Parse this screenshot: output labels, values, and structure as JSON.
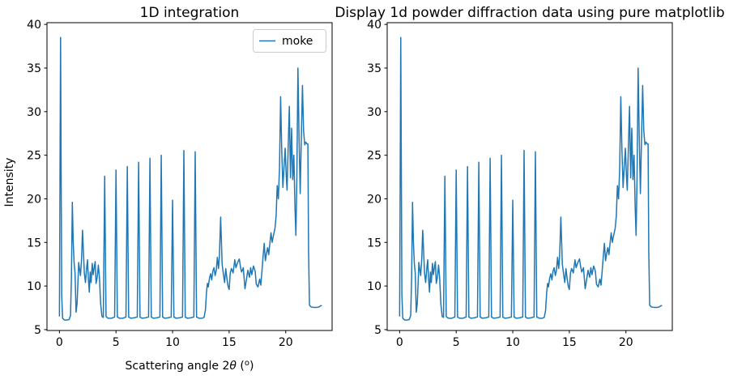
{
  "figure": {
    "background": "#ffffff"
  },
  "xlabel_parts": {
    "pre": "Scattering angle 2",
    "theta": "θ",
    "open": " (",
    "sup": "o",
    "close": ")"
  },
  "chart_data": {
    "type": "line",
    "grid": false,
    "shared_series": {
      "name": "moke",
      "color": "#1f77b4",
      "line_width": 1.5,
      "points": [
        [
          0,
          6.5
        ],
        [
          0.1,
          38.5
        ],
        [
          0.2,
          9
        ],
        [
          0.28,
          6.3
        ],
        [
          0.45,
          6.1
        ],
        [
          0.65,
          6.1
        ],
        [
          0.85,
          6.15
        ],
        [
          0.98,
          6.6
        ],
        [
          1.06,
          11
        ],
        [
          1.14,
          19.6
        ],
        [
          1.22,
          15
        ],
        [
          1.3,
          12.6
        ],
        [
          1.38,
          11.5
        ],
        [
          1.47,
          7
        ],
        [
          1.56,
          8
        ],
        [
          1.64,
          10.5
        ],
        [
          1.7,
          12.7
        ],
        [
          1.78,
          11.9
        ],
        [
          1.86,
          11.2
        ],
        [
          1.96,
          13.2
        ],
        [
          2.04,
          16.4
        ],
        [
          2.12,
          14
        ],
        [
          2.2,
          11.5
        ],
        [
          2.3,
          10.4
        ],
        [
          2.4,
          12
        ],
        [
          2.48,
          13
        ],
        [
          2.56,
          10.8
        ],
        [
          2.64,
          9.3
        ],
        [
          2.72,
          11.6
        ],
        [
          2.8,
          10.4
        ],
        [
          2.9,
          12.6
        ],
        [
          2.98,
          11.3
        ],
        [
          3.08,
          12.2
        ],
        [
          3.16,
          12.8
        ],
        [
          3.24,
          10.3
        ],
        [
          3.34,
          11
        ],
        [
          3.44,
          12.4
        ],
        [
          3.54,
          10.9
        ],
        [
          3.64,
          8
        ],
        [
          3.76,
          6.5
        ],
        [
          3.88,
          6.4
        ],
        [
          4,
          22.6
        ],
        [
          4.12,
          6.5
        ],
        [
          4.3,
          6.3
        ],
        [
          4.6,
          6.3
        ],
        [
          4.88,
          6.45
        ],
        [
          5,
          23.3
        ],
        [
          5.12,
          6.45
        ],
        [
          5.3,
          6.3
        ],
        [
          5.6,
          6.3
        ],
        [
          5.88,
          6.45
        ],
        [
          6,
          23.7
        ],
        [
          6.12,
          6.45
        ],
        [
          6.3,
          6.3
        ],
        [
          6.6,
          6.35
        ],
        [
          6.88,
          6.45
        ],
        [
          7,
          24.2
        ],
        [
          7.12,
          6.45
        ],
        [
          7.3,
          6.3
        ],
        [
          7.6,
          6.35
        ],
        [
          7.88,
          6.45
        ],
        [
          8,
          24.65
        ],
        [
          8.12,
          6.45
        ],
        [
          8.3,
          6.3
        ],
        [
          8.6,
          6.35
        ],
        [
          8.88,
          6.45
        ],
        [
          9,
          25
        ],
        [
          9.12,
          6.45
        ],
        [
          9.3,
          6.3
        ],
        [
          9.6,
          6.35
        ],
        [
          9.88,
          6.45
        ],
        [
          10,
          19.85
        ],
        [
          10.12,
          6.45
        ],
        [
          10.3,
          6.3
        ],
        [
          10.6,
          6.35
        ],
        [
          10.88,
          6.45
        ],
        [
          11,
          25.55
        ],
        [
          11.12,
          6.45
        ],
        [
          11.3,
          6.3
        ],
        [
          11.6,
          6.35
        ],
        [
          11.88,
          6.45
        ],
        [
          12,
          25.4
        ],
        [
          12.12,
          6.45
        ],
        [
          12.35,
          6.3
        ],
        [
          12.6,
          6.3
        ],
        [
          12.78,
          6.4
        ],
        [
          12.9,
          7.2
        ],
        [
          13,
          9.3
        ],
        [
          13.08,
          10.3
        ],
        [
          13.16,
          9.9
        ],
        [
          13.26,
          10.9
        ],
        [
          13.36,
          11.4
        ],
        [
          13.46,
          10.7
        ],
        [
          13.56,
          11.7
        ],
        [
          13.66,
          12.1
        ],
        [
          13.76,
          11.2
        ],
        [
          13.86,
          11.8
        ],
        [
          13.96,
          13.3
        ],
        [
          14.06,
          12
        ],
        [
          14.14,
          13.4
        ],
        [
          14.25,
          17.9
        ],
        [
          14.38,
          12.5
        ],
        [
          14.5,
          11.3
        ],
        [
          14.6,
          10.4
        ],
        [
          14.7,
          12
        ],
        [
          14.8,
          10.9
        ],
        [
          14.9,
          10
        ],
        [
          15,
          9.6
        ],
        [
          15.1,
          11.5
        ],
        [
          15.2,
          12
        ],
        [
          15.35,
          11.5
        ],
        [
          15.5,
          13
        ],
        [
          15.6,
          12.1
        ],
        [
          15.75,
          12.7
        ],
        [
          15.9,
          13.1
        ],
        [
          16,
          12.2
        ],
        [
          16.1,
          11.6
        ],
        [
          16.25,
          12.1
        ],
        [
          16.4,
          9.7
        ],
        [
          16.5,
          10.5
        ],
        [
          16.65,
          11.8
        ],
        [
          16.8,
          11
        ],
        [
          16.9,
          12.1
        ],
        [
          17,
          11.3
        ],
        [
          17.15,
          12.3
        ],
        [
          17.3,
          11.7
        ],
        [
          17.4,
          10.2
        ],
        [
          17.55,
          9.9
        ],
        [
          17.7,
          10.8
        ],
        [
          17.8,
          10.1
        ],
        [
          17.9,
          11.7
        ],
        [
          18,
          13.4
        ],
        [
          18.1,
          14.9
        ],
        [
          18.2,
          12.9
        ],
        [
          18.3,
          13.7
        ],
        [
          18.4,
          14.4
        ],
        [
          18.5,
          13.6
        ],
        [
          18.6,
          14.9
        ],
        [
          18.7,
          16.1
        ],
        [
          18.8,
          15
        ],
        [
          18.9,
          15.7
        ],
        [
          19.05,
          16.6
        ],
        [
          19.15,
          18
        ],
        [
          19.25,
          21.5
        ],
        [
          19.35,
          20
        ],
        [
          19.45,
          23.5
        ],
        [
          19.55,
          31.7
        ],
        [
          19.65,
          25.5
        ],
        [
          19.75,
          21.3
        ],
        [
          19.85,
          23.6
        ],
        [
          19.95,
          25.8
        ],
        [
          20.05,
          22.6
        ],
        [
          20.12,
          21
        ],
        [
          20.22,
          26
        ],
        [
          20.32,
          30.6
        ],
        [
          20.42,
          22.4
        ],
        [
          20.52,
          28.1
        ],
        [
          20.62,
          22.2
        ],
        [
          20.72,
          25
        ],
        [
          20.82,
          19
        ],
        [
          20.9,
          15.8
        ],
        [
          20.98,
          22
        ],
        [
          21.08,
          35
        ],
        [
          21.18,
          27
        ],
        [
          21.28,
          20.6
        ],
        [
          21.38,
          27
        ],
        [
          21.48,
          33
        ],
        [
          21.58,
          27.8
        ],
        [
          21.68,
          26.2
        ],
        [
          21.78,
          26.5
        ],
        [
          21.88,
          26.3
        ],
        [
          21.96,
          26.3
        ],
        [
          22.02,
          14
        ],
        [
          22.1,
          7.8
        ],
        [
          22.25,
          7.6
        ],
        [
          22.5,
          7.55
        ],
        [
          22.75,
          7.55
        ],
        [
          22.95,
          7.6
        ],
        [
          23.1,
          7.75
        ],
        [
          23.2,
          7.75
        ]
      ]
    },
    "subplots": [
      {
        "title": "1D integration",
        "xlabel": "Scattering angle 2θ (ᵒ)",
        "ylabel": "Intensity",
        "legend": {
          "visible": true,
          "entries": [
            "moke"
          ],
          "position": "upper right"
        },
        "xlim": [
          -1.1,
          24.1
        ],
        "ylim": [
          4.9,
          40.2
        ],
        "xticks": [
          0,
          5,
          10,
          15,
          20
        ],
        "yticks": [
          5,
          10,
          15,
          20,
          25,
          30,
          35,
          40
        ]
      },
      {
        "title": "Display 1d powder diffraction data using pure matplotlib",
        "xlabel": "",
        "ylabel": "",
        "legend": {
          "visible": false
        },
        "xlim": [
          -1.1,
          24.1
        ],
        "ylim": [
          4.9,
          40.2
        ],
        "xticks": [
          0,
          5,
          10,
          15,
          20
        ],
        "yticks": [
          5,
          10,
          15,
          20,
          25,
          30,
          35,
          40
        ]
      }
    ]
  }
}
